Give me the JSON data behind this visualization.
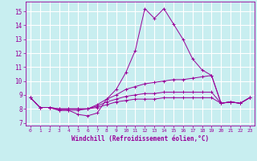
{
  "background_color": "#c8eef0",
  "grid_color": "#ffffff",
  "line_color": "#990099",
  "xlabel": "Windchill (Refroidissement éolien,°C)",
  "xlim": [
    -0.5,
    23.5
  ],
  "ylim": [
    6.8,
    15.7
  ],
  "yticks": [
    7,
    8,
    9,
    10,
    11,
    12,
    13,
    14,
    15
  ],
  "xticks": [
    0,
    1,
    2,
    3,
    4,
    5,
    6,
    7,
    8,
    9,
    10,
    11,
    12,
    13,
    14,
    15,
    16,
    17,
    18,
    19,
    20,
    21,
    22,
    23
  ],
  "xtick_labels": [
    "0",
    "1",
    "2",
    "3",
    "4",
    "5",
    "6",
    "7",
    "8",
    "9",
    "10",
    "11",
    "12",
    "13",
    "14",
    "15",
    "16",
    "17",
    "18",
    "19",
    "20",
    "21",
    "22",
    "23"
  ],
  "series": [
    [
      8.8,
      8.1,
      8.1,
      7.9,
      7.9,
      7.6,
      7.5,
      7.7,
      8.7,
      9.4,
      10.6,
      12.2,
      15.2,
      14.5,
      15.2,
      14.1,
      13.0,
      11.6,
      10.8,
      10.4,
      8.4,
      8.5,
      8.4,
      8.8
    ],
    [
      8.8,
      8.1,
      8.1,
      7.9,
      7.9,
      7.9,
      8.0,
      8.3,
      8.7,
      9.0,
      9.4,
      9.6,
      9.8,
      9.9,
      10.0,
      10.1,
      10.1,
      10.2,
      10.3,
      10.4,
      8.4,
      8.5,
      8.4,
      8.8
    ],
    [
      8.8,
      8.1,
      8.1,
      8.0,
      8.0,
      8.0,
      8.0,
      8.2,
      8.5,
      8.7,
      8.9,
      9.0,
      9.1,
      9.1,
      9.2,
      9.2,
      9.2,
      9.2,
      9.2,
      9.2,
      8.4,
      8.5,
      8.4,
      8.8
    ],
    [
      8.8,
      8.1,
      8.1,
      8.0,
      8.0,
      8.0,
      8.0,
      8.1,
      8.3,
      8.5,
      8.6,
      8.7,
      8.7,
      8.7,
      8.8,
      8.8,
      8.8,
      8.8,
      8.8,
      8.8,
      8.4,
      8.5,
      8.4,
      8.8
    ]
  ]
}
